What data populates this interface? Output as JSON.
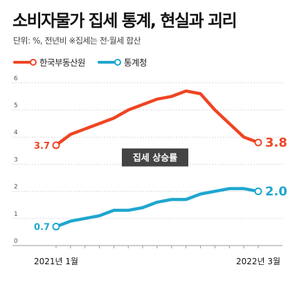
{
  "title": "소비자물가 집세 통계, 현실과 괴리",
  "subtitle": "단위: %, 전년비  ※집세는 전·월세 합산",
  "colors": {
    "red": "#ef4523",
    "blue": "#1fa6cf",
    "annotation_bg": "#444444"
  },
  "chart_data": {
    "type": "line",
    "ylim": [
      0,
      6
    ],
    "y_ticks": [
      "0",
      "1",
      "2",
      "3",
      "4",
      "5",
      "6"
    ],
    "x_tick_labels": [
      "2021년 1월",
      "2022년 3월"
    ],
    "annotation": "집세 상승률",
    "series": [
      {
        "name": "한국부동산원",
        "color": "#ef4523",
        "start_label": "3.7",
        "end_label": "3.8",
        "values": [
          3.7,
          4.1,
          4.3,
          4.5,
          4.7,
          5.0,
          5.2,
          5.4,
          5.5,
          5.7,
          5.6,
          5.0,
          4.5,
          4.0,
          3.8
        ]
      },
      {
        "name": "통계청",
        "color": "#1fa6cf",
        "start_label": "0.7",
        "end_label": "2.0",
        "values": [
          0.7,
          0.9,
          1.0,
          1.1,
          1.3,
          1.3,
          1.4,
          1.6,
          1.7,
          1.7,
          1.9,
          2.0,
          2.1,
          2.1,
          2.0
        ]
      }
    ]
  }
}
